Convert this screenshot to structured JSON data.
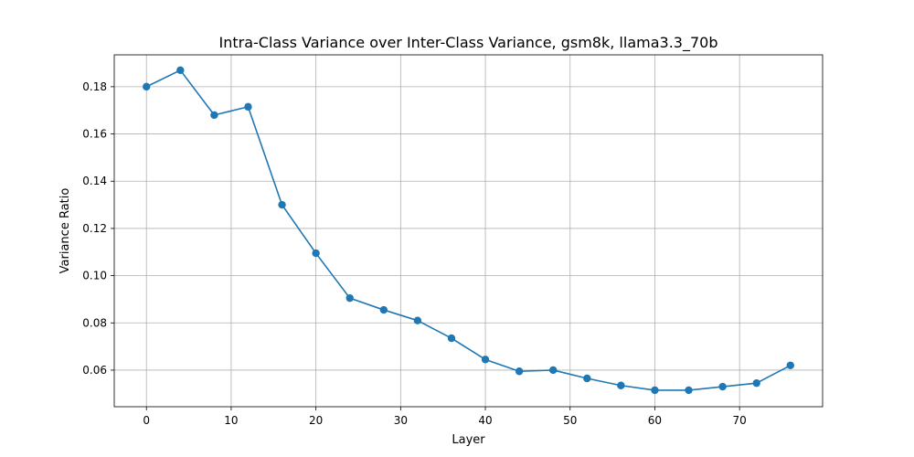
{
  "chart_data": {
    "type": "line",
    "title": "Intra-Class Variance over Inter-Class Variance, gsm8k, llama3.3_70b",
    "xlabel": "Layer",
    "ylabel": "Variance Ratio",
    "xlim": [
      -3.8,
      79.8
    ],
    "ylim": [
      0.0445,
      0.1935
    ],
    "xticks": [
      0,
      10,
      20,
      30,
      40,
      50,
      60,
      70
    ],
    "yticks": [
      0.06,
      0.08,
      0.1,
      0.12,
      0.14,
      0.16,
      0.18
    ],
    "ytick_labels": [
      "0.06",
      "0.08",
      "0.10",
      "0.12",
      "0.14",
      "0.16",
      "0.18"
    ],
    "grid": true,
    "legend": "none",
    "series": [
      {
        "color": "#1f77b4",
        "marker": "circle",
        "x": [
          0,
          4,
          8,
          12,
          16,
          20,
          24,
          28,
          32,
          36,
          40,
          44,
          48,
          52,
          56,
          60,
          64,
          68,
          72,
          76
        ],
        "y": [
          0.18,
          0.187,
          0.168,
          0.1715,
          0.13,
          0.1095,
          0.0905,
          0.0855,
          0.081,
          0.0735,
          0.0645,
          0.0595,
          0.06,
          0.0565,
          0.0535,
          0.0515,
          0.0515,
          0.053,
          0.0545,
          0.062
        ]
      }
    ]
  }
}
